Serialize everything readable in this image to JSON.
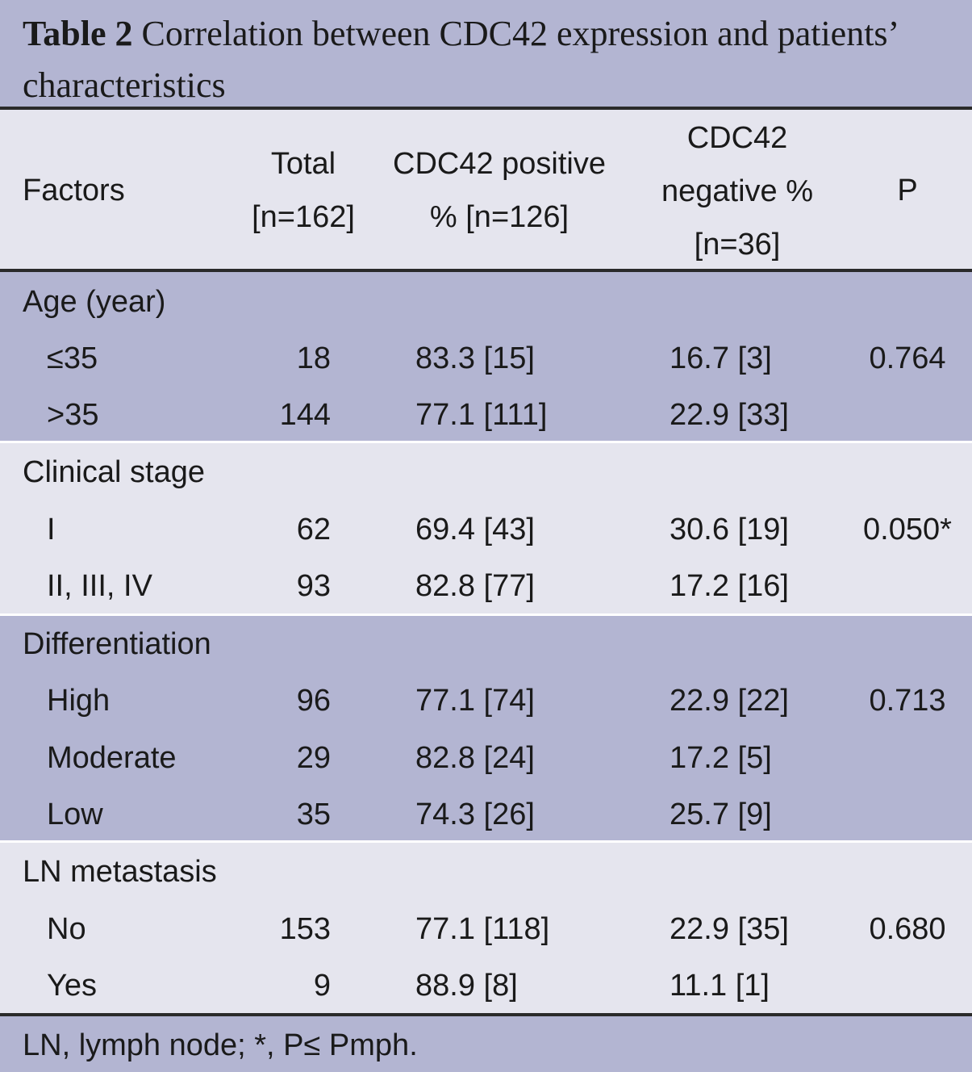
{
  "caption": {
    "label": "Table 2",
    "line1": "Correlation between CDC42 expression and patients’",
    "line2": "characteristics"
  },
  "header": {
    "factors": "Factors",
    "total_l1": "Total",
    "total_l2": "[n=162]",
    "pos_l1": "CDC42 positive",
    "pos_l2": "% [n=126]",
    "neg_l1": "CDC42",
    "neg_l2": "negative %",
    "neg_l3": "[n=36]",
    "p": "P"
  },
  "groups": [
    {
      "title": "Age (year)",
      "rows": [
        {
          "label": "≤35",
          "total": "18",
          "pos": "83.3 [15]",
          "neg": "16.7 [3]",
          "p": "0.764"
        },
        {
          "label": ">35",
          "total": "144",
          "pos": "77.1 [111]",
          "neg": "22.9 [33]",
          "p": ""
        }
      ]
    },
    {
      "title": "Clinical stage",
      "rows": [
        {
          "label": "I",
          "total": "62",
          "pos": "69.4 [43]",
          "neg": "30.6 [19]",
          "p": "0.050*"
        },
        {
          "label": "II, III, IV",
          "total": "93",
          "pos": "82.8 [77]",
          "neg": "17.2 [16]",
          "p": ""
        }
      ]
    },
    {
      "title": "Differentiation",
      "rows": [
        {
          "label": "High",
          "total": "96",
          "pos": "77.1 [74]",
          "neg": "22.9 [22]",
          "p": "0.713"
        },
        {
          "label": "Moderate",
          "total": "29",
          "pos": "82.8 [24]",
          "neg": "17.2 [5]",
          "p": ""
        },
        {
          "label": "Low",
          "total": "35",
          "pos": "74.3 [26]",
          "neg": "25.7 [9]",
          "p": ""
        }
      ]
    },
    {
      "title": "LN metastasis",
      "rows": [
        {
          "label": "No",
          "total": "153",
          "pos": "77.1 [118]",
          "neg": "22.9 [35]",
          "p": "0.680"
        },
        {
          "label": "Yes",
          "total": "9",
          "pos": "88.9 [8]",
          "neg": "11.1 [1]",
          "p": ""
        }
      ]
    }
  ],
  "footnote": "LN, lymph node; *, P≤ Pmph.",
  "colors": {
    "band_dark": "#b3b5d2",
    "band_light": "#e5e5ee",
    "rule": "#2a2a2a"
  }
}
